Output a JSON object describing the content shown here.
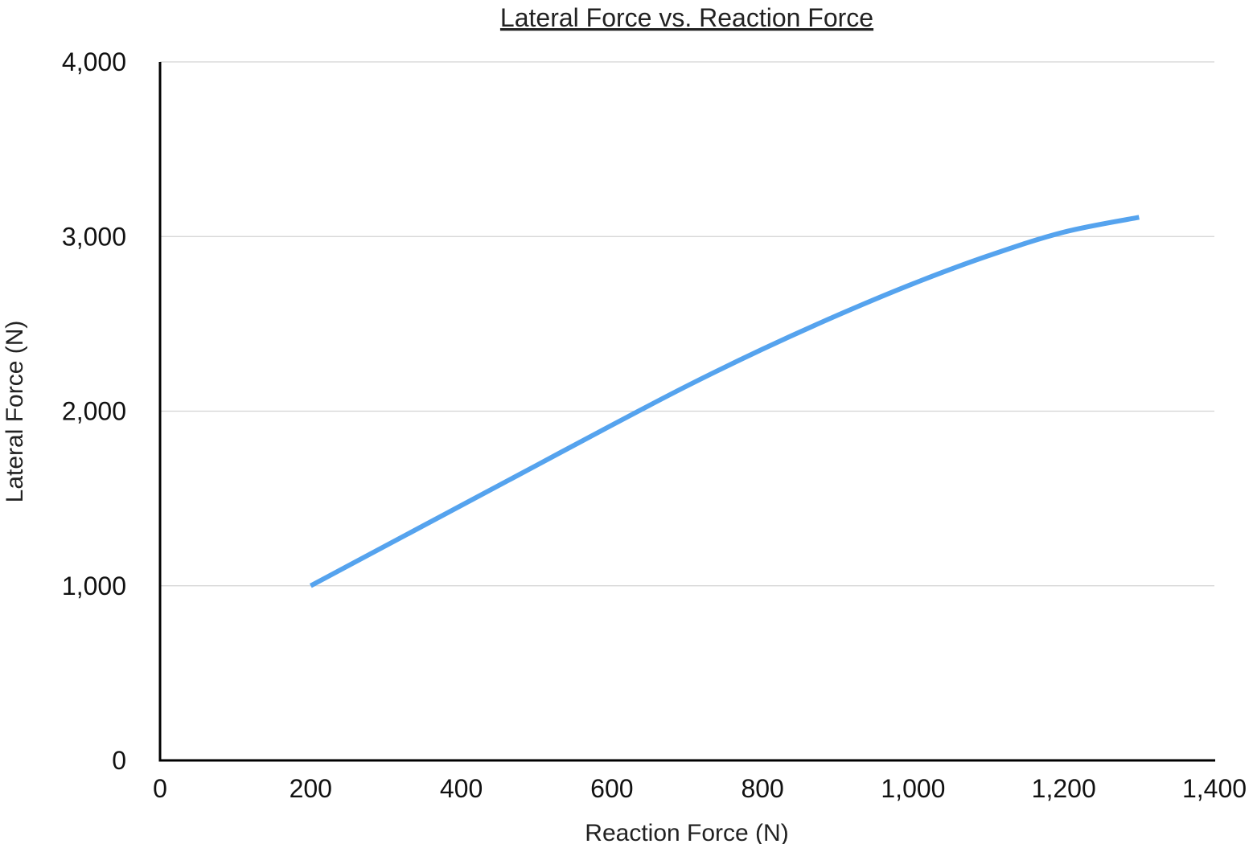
{
  "chart_data": {
    "type": "line",
    "title": "Lateral Force vs. Reaction Force",
    "xlabel": "Reaction Force (N)",
    "ylabel": "Lateral Force (N)",
    "xlim": [
      0,
      1400
    ],
    "ylim": [
      0,
      4000
    ],
    "x_ticks": [
      0,
      200,
      400,
      600,
      800,
      1000,
      1200,
      1400
    ],
    "x_tick_labels": [
      "0",
      "200",
      "400",
      "600",
      "800",
      "1,000",
      "1,200",
      "1,400"
    ],
    "y_ticks": [
      0,
      1000,
      2000,
      3000,
      4000
    ],
    "y_tick_labels": [
      "0",
      "1,000",
      "2,000",
      "3,000",
      "4,000"
    ],
    "grid": "horizontal",
    "legend": "none",
    "series": [
      {
        "color": "#55a3ee",
        "x": [
          200,
          300,
          400,
          500,
          600,
          700,
          800,
          900,
          1000,
          1100,
          1200,
          1300
        ],
        "y": [
          1000,
          1230,
          1460,
          1690,
          1920,
          2145,
          2355,
          2550,
          2730,
          2890,
          3025,
          3110
        ]
      }
    ]
  }
}
